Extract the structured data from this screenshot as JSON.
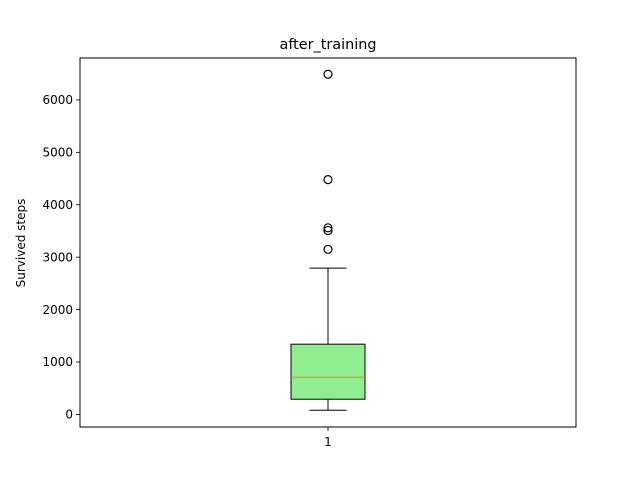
{
  "chart_data": {
    "type": "box",
    "title": "after_training",
    "xlabel": "",
    "ylabel": "Survived steps",
    "categories": [
      "1"
    ],
    "ylim": [
      -240,
      6800
    ],
    "yticks": [
      0,
      1000,
      2000,
      3000,
      4000,
      5000,
      6000
    ],
    "grid": false,
    "boxes": [
      {
        "label": "1",
        "whisker_low": 80,
        "q1": 290,
        "median": 710,
        "q3": 1340,
        "whisker_high": 2790,
        "outliers": [
          3150,
          3510,
          3560,
          4480,
          6490
        ]
      }
    ],
    "colors": {
      "box_fill": "#90ee90",
      "median_line": "#ff7f0e",
      "lines": "#000000"
    }
  }
}
